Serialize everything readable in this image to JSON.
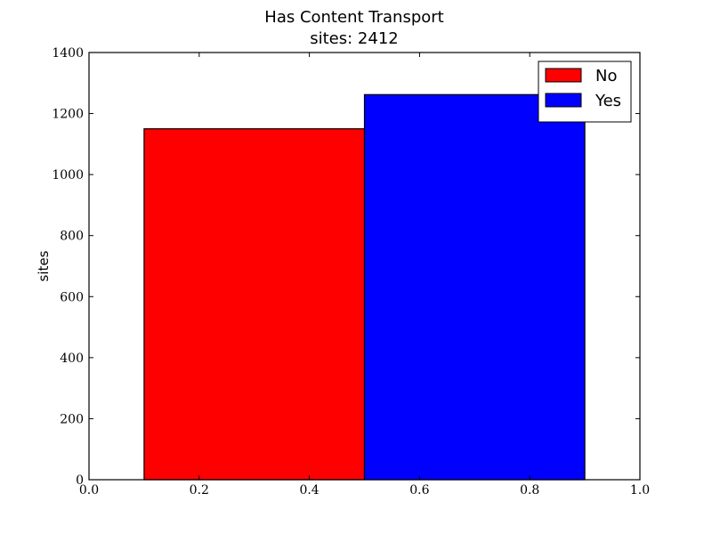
{
  "chart_data": {
    "type": "bar",
    "title": "Has Content Transport",
    "subtitle": "sites: 2412",
    "xlabel": "",
    "ylabel": "sites",
    "xlim": [
      0.0,
      1.0
    ],
    "ylim": [
      0,
      1400
    ],
    "x_ticks": [
      "0.0",
      "0.2",
      "0.4",
      "0.6",
      "0.8",
      "1.0"
    ],
    "y_ticks": [
      "0",
      "200",
      "400",
      "600",
      "800",
      "1000",
      "1200",
      "1400"
    ],
    "grid": false,
    "legend_position": "top-right",
    "series": [
      {
        "name": "No",
        "color": "#ff0000",
        "x_start": 0.1,
        "x_end": 0.5,
        "value": 1150
      },
      {
        "name": "Yes",
        "color": "#0000ff",
        "x_start": 0.5,
        "x_end": 0.9,
        "value": 1262
      }
    ]
  }
}
